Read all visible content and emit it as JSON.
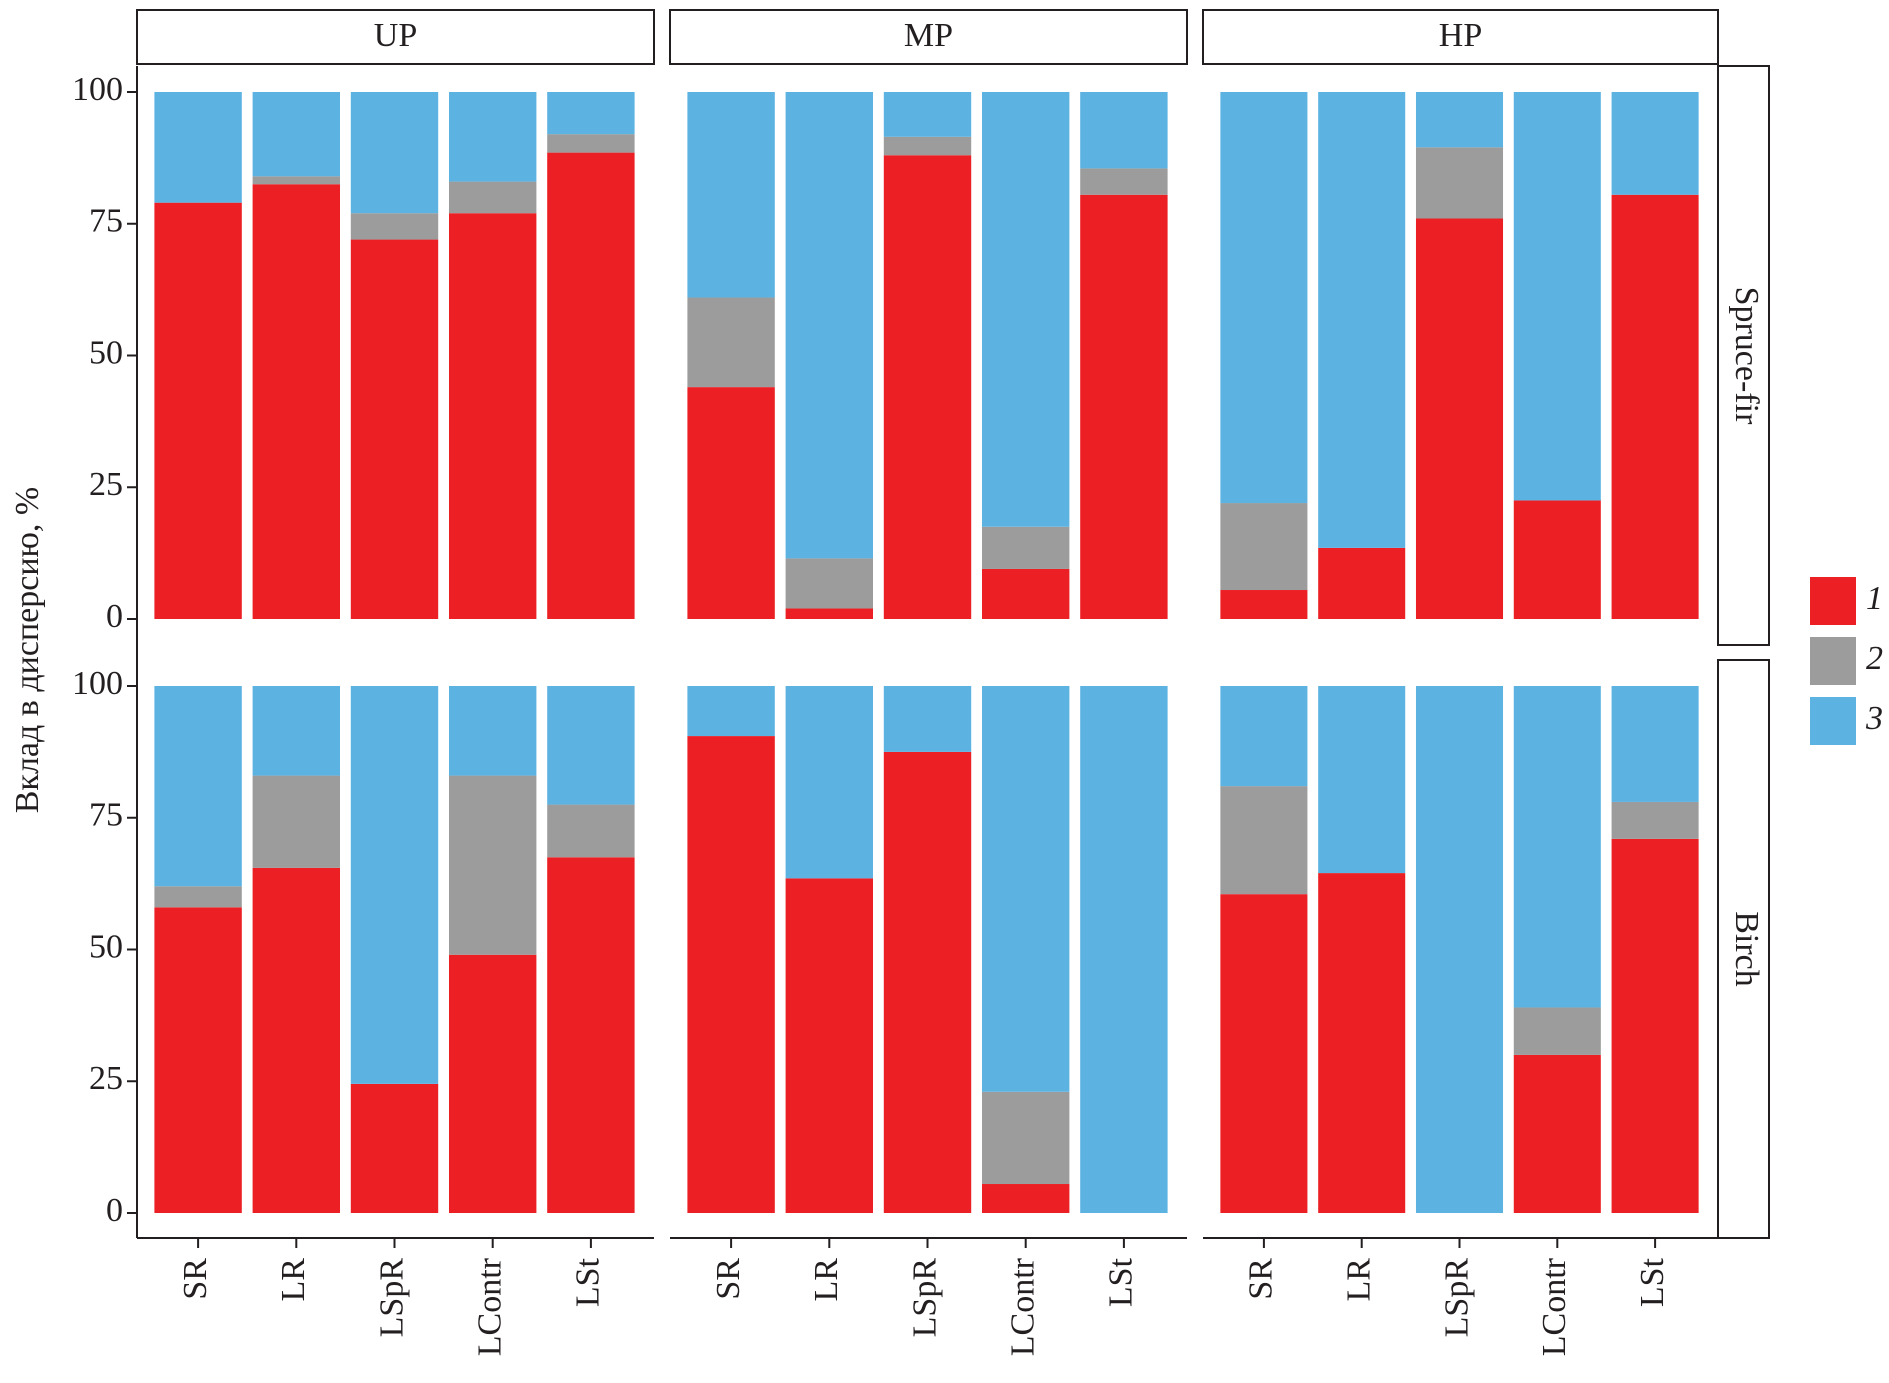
{
  "chart_data": {
    "type": "bar",
    "stacked": true,
    "ylabel": "Вклад в дисперсию, %",
    "columns": [
      "UP",
      "MP",
      "HP"
    ],
    "rows": [
      "Spruce-fir",
      "Birch"
    ],
    "categories": [
      "SR",
      "LR",
      "LSpR",
      "LContr",
      "LSt"
    ],
    "series": [
      {
        "name": "1",
        "color": "#ec2024"
      },
      {
        "name": "2",
        "color": "#9b9c9b"
      },
      {
        "name": "3",
        "color": "#5cb3e2"
      }
    ],
    "ylim": [
      0,
      100
    ],
    "yticks": [
      0,
      25,
      50,
      75,
      100
    ],
    "panels": [
      {
        "values": [
          [
            79,
            82.5,
            72,
            77,
            88.5
          ],
          [
            0,
            1.5,
            5,
            6,
            3.5
          ],
          [
            21,
            16,
            23,
            17,
            8
          ]
        ]
      },
      {
        "values": [
          [
            44,
            2,
            88,
            9.5,
            80.5
          ],
          [
            17,
            9.5,
            3.5,
            8,
            5
          ],
          [
            39,
            88.5,
            8.5,
            82.5,
            14.5
          ]
        ]
      },
      {
        "values": [
          [
            5.5,
            13.5,
            76,
            22.5,
            80.5
          ],
          [
            16.5,
            0,
            13.5,
            0,
            0
          ],
          [
            78,
            86.5,
            10.5,
            77.5,
            19.5
          ]
        ]
      },
      {
        "values": [
          [
            58,
            65.5,
            24.5,
            49,
            67.5
          ],
          [
            4,
            17.5,
            0,
            34,
            10
          ],
          [
            38,
            17,
            75.5,
            17,
            22.5
          ]
        ]
      },
      {
        "values": [
          [
            90.5,
            63.5,
            87.5,
            5.5,
            0
          ],
          [
            0,
            0,
            0,
            17.5,
            0
          ],
          [
            9.5,
            36.5,
            12.5,
            77,
            100
          ]
        ]
      },
      {
        "values": [
          [
            60.5,
            64.5,
            0,
            30,
            71
          ],
          [
            20.5,
            0,
            0,
            9,
            7
          ],
          [
            19,
            35.5,
            100,
            61,
            22
          ]
        ]
      }
    ]
  }
}
